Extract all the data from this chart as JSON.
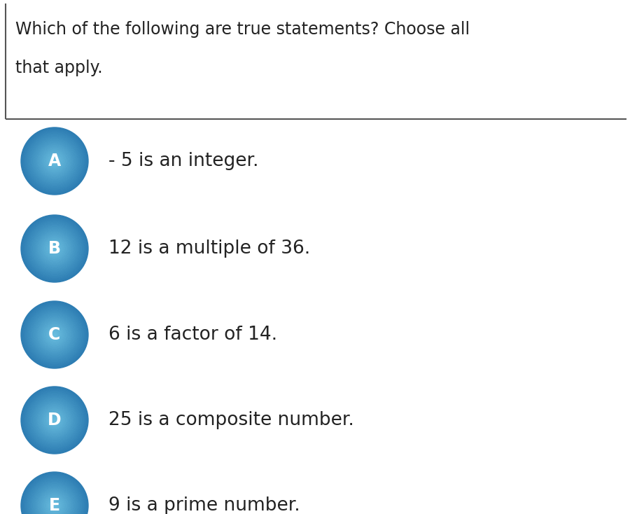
{
  "title_line1": "Which of the following are true statements? Choose all",
  "title_line2": "that apply.",
  "options": [
    {
      "letter": "A",
      "text": "- 5 is an integer."
    },
    {
      "letter": "B",
      "text": "12 is a multiple of 36."
    },
    {
      "letter": "C",
      "text": "6 is a factor of 14."
    },
    {
      "letter": "D",
      "text": "25 is a composite number."
    },
    {
      "letter": "E",
      "text": "9 is a prime number."
    }
  ],
  "circle_color_main": "#4a9fd4",
  "circle_color_dark": "#2d7db3",
  "circle_color_light": "#6bbfe0",
  "letter_color": "#ffffff",
  "text_color": "#222222",
  "bg_color": "#ffffff",
  "border_color": "#555555",
  "title_fontsize": 17,
  "option_fontsize": 19,
  "letter_fontsize": 17
}
